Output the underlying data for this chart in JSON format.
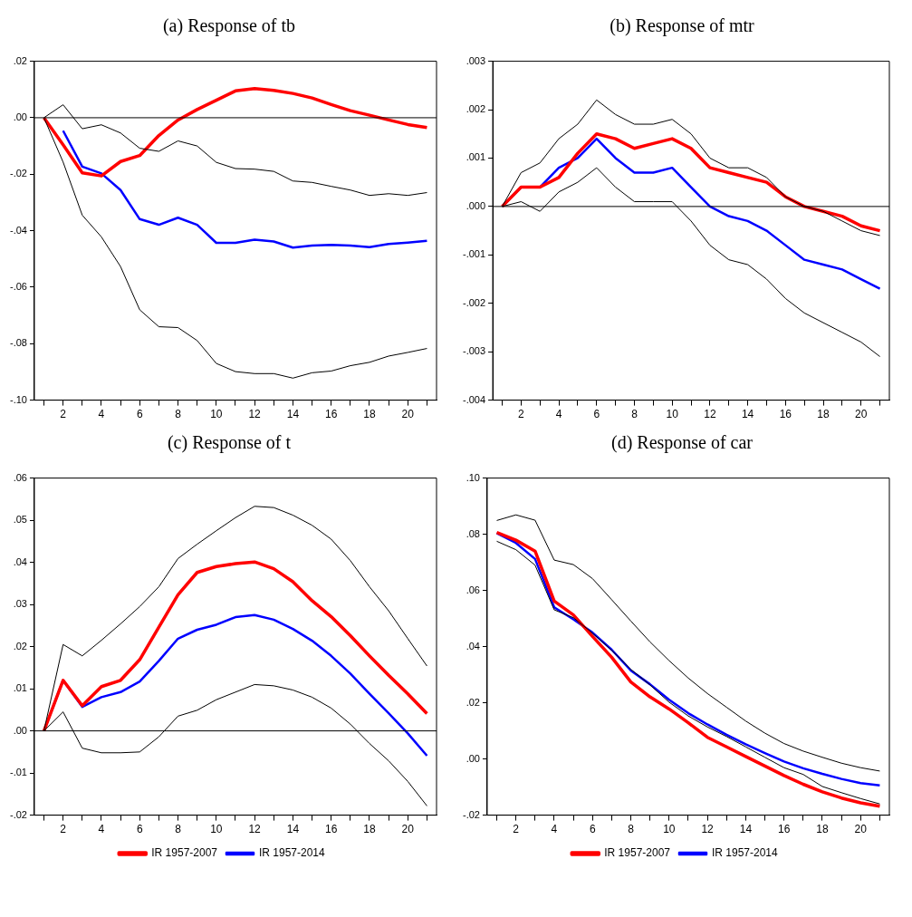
{
  "chart_data": [
    {
      "type": "line",
      "title": "(a) Response of tb",
      "categories": [
        null,
        "2",
        null,
        "4",
        null,
        "6",
        null,
        "8",
        null,
        "10",
        null,
        "12",
        null,
        "14",
        null,
        "16",
        null,
        "18",
        null,
        "20",
        null
      ],
      "ylim": [
        -0.1,
        0.02
      ],
      "yticks": [
        {
          "value": -0.1,
          "label": "-.10"
        },
        {
          "value": -0.08,
          "label": "-.08"
        },
        {
          "value": -0.06,
          "label": "-.06"
        },
        {
          "value": -0.04,
          "label": "-.04"
        },
        {
          "value": -0.02,
          "label": "-.02"
        },
        {
          "value": 0,
          "label": ".00"
        },
        {
          "value": 0.02,
          "label": ".02"
        }
      ],
      "grid": false,
      "legend": false,
      "ref_lines": [
        {
          "axis": "y",
          "value": 0,
          "color": "#000000"
        }
      ],
      "series": [
        {
          "color": "#000000",
          "values": [
            0,
            0.0046,
            -0.0039,
            -0.0025,
            -0.0054,
            -0.0108,
            -0.0119,
            -0.0082,
            -0.01,
            -0.0158,
            -0.018,
            -0.0182,
            -0.019,
            -0.0224,
            -0.0229,
            -0.0243,
            -0.0256,
            -0.0275,
            -0.0269,
            -0.0275,
            -0.0265
          ]
        },
        {
          "color": "#000000",
          "values": [
            0,
            -0.0157,
            -0.0345,
            -0.0422,
            -0.0527,
            -0.068,
            -0.074,
            -0.0743,
            -0.0789,
            -0.087,
            -0.0899,
            -0.0906,
            -0.0906,
            -0.0922,
            -0.0903,
            -0.0897,
            -0.0878,
            -0.0866,
            -0.0844,
            -0.0831,
            -0.0817
          ]
        },
        {
          "color": "#ff0000",
          "values": [
            0,
            -0.0096,
            -0.0195,
            -0.0206,
            -0.0155,
            -0.0134,
            -0.0063,
            -0.0008,
            0.0029,
            0.0062,
            0.0095,
            0.0103,
            0.0097,
            0.0086,
            0.007,
            0.0047,
            0.0025,
            0.0009,
            -0.0008,
            -0.0024,
            -0.0035
          ]
        },
        {
          "color": "#0000ff",
          "values": [
            null,
            -0.0046,
            -0.0173,
            -0.0197,
            -0.0256,
            -0.0359,
            -0.0379,
            -0.0354,
            -0.0379,
            -0.0443,
            -0.0443,
            -0.0432,
            -0.0438,
            -0.046,
            -0.0453,
            -0.045,
            -0.0453,
            -0.0458,
            -0.0447,
            -0.0442,
            -0.0436
          ]
        }
      ]
    },
    {
      "type": "line",
      "title": "(b) Response of mtr",
      "categories": [
        null,
        "2",
        null,
        "4",
        null,
        "6",
        null,
        "8",
        null,
        "10",
        null,
        "12",
        null,
        "14",
        null,
        "16",
        null,
        "18",
        null,
        "20",
        null
      ],
      "ylim": [
        -0.004,
        0.003
      ],
      "yticks": [
        {
          "value": -0.004,
          "label": "-.004"
        },
        {
          "value": -0.003,
          "label": "-.003"
        },
        {
          "value": -0.002,
          "label": "-.002"
        },
        {
          "value": -0.001,
          "label": "-.001"
        },
        {
          "value": 0,
          "label": ".000"
        },
        {
          "value": 0.001,
          "label": ".001"
        },
        {
          "value": 0.002,
          "label": ".002"
        },
        {
          "value": 0.003,
          "label": ".003"
        }
      ],
      "grid": false,
      "legend": false,
      "ref_lines": [
        {
          "axis": "y",
          "value": 0,
          "color": "#000000"
        }
      ],
      "series": [
        {
          "color": "#000000",
          "values": [
            0,
            0.0007,
            0.0009,
            0.0014,
            0.0017,
            0.0022,
            0.0019,
            0.0017,
            0.0017,
            0.0018,
            0.0015,
            0.001,
            0.0008,
            0.0008,
            0.0006,
            0.0002,
            0,
            -0.0001,
            -0.0003,
            -0.0005,
            -0.0006
          ]
        },
        {
          "color": "#000000",
          "values": [
            0,
            0.0001,
            -0.0001,
            0.0003,
            0.0005,
            0.0008,
            0.0004,
            0.0001,
            0.0001,
            0.0001,
            -0.0003,
            -0.0008,
            -0.0011,
            -0.0012,
            -0.0015,
            -0.0019,
            -0.0022,
            -0.0024,
            -0.0026,
            -0.0028,
            -0.0031
          ]
        },
        {
          "color": "#ff0000",
          "values": [
            0,
            0.0004,
            0.0004,
            0.0006,
            0.0011,
            0.0015,
            0.0014,
            0.0012,
            0.0013,
            0.0014,
            0.0012,
            0.0008,
            0.0007,
            0.0006,
            0.0005,
            0.0002,
            0,
            -0.0001,
            -0.0002,
            -0.0004,
            -0.0005
          ]
        },
        {
          "color": "#0000ff",
          "values": [
            0,
            0.0004,
            0.0004,
            0.0008,
            0.001,
            0.0014,
            0.001,
            0.0007,
            0.0007,
            0.0008,
            0.0004,
            0,
            -0.0002,
            -0.0003,
            -0.0005,
            -0.0008,
            -0.0011,
            -0.0012,
            -0.0013,
            -0.0015,
            -0.0017
          ]
        }
      ]
    },
    {
      "type": "line",
      "title": "(c) Response of t",
      "categories": [
        null,
        "2",
        null,
        "4",
        null,
        "6",
        null,
        "8",
        null,
        "10",
        null,
        "12",
        null,
        "14",
        null,
        "16",
        null,
        "18",
        null,
        "20",
        null
      ],
      "ylim": [
        -0.02,
        0.06
      ],
      "yticks": [
        {
          "value": -0.02,
          "label": "-.02"
        },
        {
          "value": -0.01,
          "label": "-.01"
        },
        {
          "value": 0,
          "label": ".00"
        },
        {
          "value": 0.01,
          "label": ".01"
        },
        {
          "value": 0.02,
          "label": ".02"
        },
        {
          "value": 0.03,
          "label": ".03"
        },
        {
          "value": 0.04,
          "label": ".04"
        },
        {
          "value": 0.05,
          "label": ".05"
        },
        {
          "value": 0.06,
          "label": ".06"
        }
      ],
      "grid": false,
      "legend": "bottom",
      "ref_lines": [
        {
          "axis": "y",
          "value": 0,
          "color": "#000000"
        }
      ],
      "series": [
        {
          "color": "#000000",
          "values": [
            0,
            0.0205,
            0.0178,
            0.0215,
            0.0254,
            0.0295,
            0.0342,
            0.0409,
            0.0443,
            0.0475,
            0.0506,
            0.0533,
            0.053,
            0.0512,
            0.0488,
            0.0455,
            0.0404,
            0.0342,
            0.0285,
            0.0219,
            0.0154
          ]
        },
        {
          "color": "#000000",
          "values": [
            0,
            0.0045,
            -0.0041,
            -0.0052,
            -0.0052,
            -0.005,
            -0.0014,
            0.0035,
            0.0049,
            0.0074,
            0.0092,
            0.011,
            0.0107,
            0.0097,
            0.008,
            0.0054,
            0.0016,
            -0.003,
            -0.0071,
            -0.012,
            -0.0178
          ]
        },
        {
          "name": "IR 1957-2007",
          "color": "#ff0000",
          "values": [
            0,
            0.012,
            0.006,
            0.0105,
            0.012,
            0.0169,
            0.0246,
            0.0323,
            0.0376,
            0.039,
            0.0397,
            0.0401,
            0.0385,
            0.0354,
            0.0309,
            0.0271,
            0.0226,
            0.0178,
            0.0132,
            0.0088,
            0.0041
          ]
        },
        {
          "name": "IR 1957-2014",
          "color": "#0000ff",
          "values": [
            0,
            0.012,
            0.0057,
            0.008,
            0.0092,
            0.0117,
            0.0166,
            0.0219,
            0.024,
            0.0252,
            0.027,
            0.0275,
            0.0264,
            0.0242,
            0.0214,
            0.0178,
            0.0136,
            0.0088,
            0.0042,
            -0.0006,
            -0.0059
          ]
        }
      ]
    },
    {
      "type": "line",
      "title": "(d) Response of car",
      "categories": [
        null,
        "2",
        null,
        "4",
        null,
        "6",
        null,
        "8",
        null,
        "10",
        null,
        "12",
        null,
        "14",
        null,
        "16",
        null,
        "18",
        null,
        "20",
        null
      ],
      "ylim": [
        -0.02,
        0.1
      ],
      "yticks": [
        {
          "value": -0.02,
          "label": "-.02"
        },
        {
          "value": 0,
          "label": ".00"
        },
        {
          "value": 0.02,
          "label": ".02"
        },
        {
          "value": 0.04,
          "label": ".04"
        },
        {
          "value": 0.06,
          "label": ".06"
        },
        {
          "value": 0.08,
          "label": ".08"
        },
        {
          "value": 0.1,
          "label": ".10"
        }
      ],
      "grid": false,
      "legend": "bottom",
      "series": [
        {
          "color": "#000000",
          "values": [
            0.0849,
            0.0869,
            0.085,
            0.0708,
            0.0692,
            0.0642,
            0.0567,
            0.0491,
            0.0417,
            0.035,
            0.0288,
            0.0233,
            0.0184,
            0.0135,
            0.0092,
            0.0055,
            0.0028,
            0.0006,
            -0.0015,
            -0.0031,
            -0.0043
          ]
        },
        {
          "color": "#000000",
          "values": [
            0.0775,
            0.0745,
            0.069,
            0.0531,
            0.0503,
            0.0448,
            0.0387,
            0.0319,
            0.0264,
            0.0202,
            0.0153,
            0.0114,
            0.008,
            0.0043,
            0.0006,
            -0.0031,
            -0.0055,
            -0.0098,
            -0.012,
            -0.0141,
            -0.016
          ]
        },
        {
          "name": "IR 1957-2007",
          "color": "#ff0000",
          "values": [
            0.0806,
            0.0779,
            0.074,
            0.0562,
            0.0513,
            0.0436,
            0.0362,
            0.0274,
            0.0221,
            0.0178,
            0.0129,
            0.0077,
            0.0043,
            0.0009,
            -0.0025,
            -0.0059,
            -0.009,
            -0.0117,
            -0.0139,
            -0.0156,
            -0.0168
          ]
        },
        {
          "name": "IR 1957-2014",
          "color": "#0000ff",
          "values": [
            0.0804,
            0.0769,
            0.0712,
            0.054,
            0.0497,
            0.045,
            0.0389,
            0.0315,
            0.0266,
            0.0211,
            0.0163,
            0.0123,
            0.0086,
            0.0052,
            0.0021,
            -0.0009,
            -0.0033,
            -0.0053,
            -0.0071,
            -0.0086,
            -0.0094
          ]
        }
      ]
    }
  ]
}
